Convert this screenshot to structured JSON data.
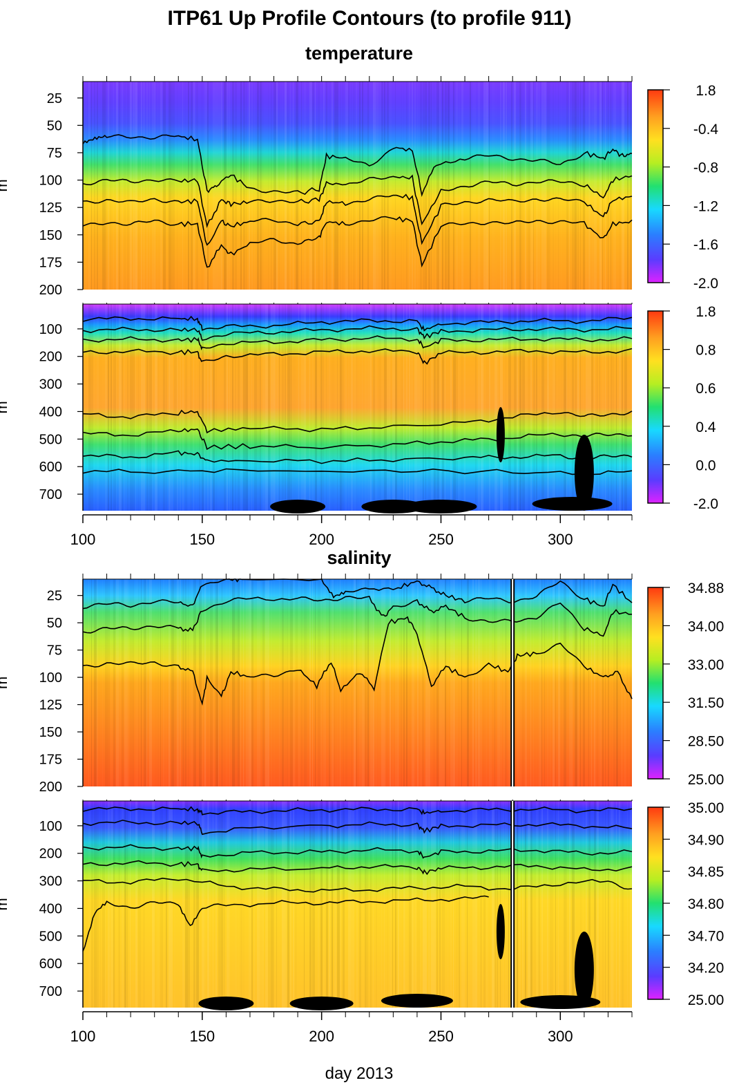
{
  "title": "ITP61 Up Profile Contours (to profile 911)",
  "xlabel": "day 2013",
  "chart_data": [
    {
      "type": "heatmap",
      "section": "temperature",
      "variable": "temperature",
      "ylabel": "m",
      "y_axis_inverted": true,
      "ylim": [
        10,
        200
      ],
      "xlim": [
        100,
        330
      ],
      "x_ticks": [
        100,
        150,
        200,
        250,
        300
      ],
      "y_ticks": [
        25,
        50,
        75,
        100,
        125,
        150,
        175,
        200
      ],
      "colorbar_labels": [
        "1.8",
        "-0.4",
        "-0.8",
        "-1.2",
        "-1.6",
        "-2.0"
      ],
      "contour_depths_m": [
        {
          "day": [
            100,
            105,
            110,
            120,
            130,
            140,
            148,
            152,
            156,
            162,
            170,
            180,
            190,
            199,
            202,
            210,
            220,
            230,
            238,
            242,
            248,
            260,
            270,
            280,
            290,
            300,
            310,
            318,
            322,
            326,
            330
          ],
          "depth": [
            65,
            62,
            61,
            60,
            61,
            60,
            63,
            110,
            105,
            95,
            108,
            110,
            112,
            108,
            78,
            80,
            88,
            70,
            73,
            112,
            85,
            80,
            78,
            80,
            82,
            86,
            75,
            80,
            72,
            78,
            76
          ]
        },
        {
          "day": [
            100,
            110,
            120,
            130,
            140,
            148,
            152,
            158,
            162,
            170,
            180,
            190,
            199,
            202,
            210,
            220,
            230,
            238,
            242,
            250,
            260,
            270,
            280,
            290,
            300,
            310,
            318,
            322,
            330
          ],
          "depth": [
            103,
            100,
            102,
            99,
            101,
            100,
            142,
            118,
            122,
            120,
            118,
            120,
            118,
            103,
            104,
            100,
            97,
            98,
            140,
            110,
            105,
            102,
            104,
            101,
            102,
            104,
            116,
            100,
            96
          ]
        },
        {
          "day": [
            100,
            110,
            120,
            130,
            140,
            148,
            152,
            158,
            162,
            170,
            180,
            190,
            199,
            202,
            210,
            220,
            230,
            238,
            242,
            250,
            260,
            270,
            280,
            290,
            300,
            310,
            318,
            322,
            330
          ],
          "depth": [
            120,
            118,
            121,
            117,
            120,
            119,
            160,
            138,
            142,
            138,
            136,
            140,
            138,
            120,
            121,
            118,
            114,
            116,
            158,
            124,
            120,
            118,
            120,
            117,
            118,
            120,
            134,
            118,
            115
          ]
        },
        {
          "day": [
            100,
            110,
            120,
            130,
            140,
            148,
            152,
            158,
            162,
            170,
            180,
            190,
            199,
            202,
            210,
            220,
            230,
            238,
            242,
            250,
            260,
            270,
            280,
            290,
            300,
            310,
            318,
            322,
            330
          ],
          "depth": [
            142,
            138,
            141,
            137,
            140,
            140,
            180,
            160,
            168,
            158,
            155,
            158,
            152,
            138,
            140,
            136,
            135,
            137,
            178,
            142,
            140,
            138,
            140,
            137,
            138,
            140,
            154,
            140,
            138
          ]
        }
      ]
    },
    {
      "type": "heatmap",
      "section": "temperature",
      "variable": "temperature",
      "ylabel": "m",
      "y_axis_inverted": true,
      "ylim": [
        10,
        760
      ],
      "xlim": [
        100,
        330
      ],
      "x_ticks": [
        100,
        150,
        200,
        250,
        300
      ],
      "y_ticks": [
        100,
        200,
        300,
        400,
        500,
        600,
        700
      ],
      "colorbar_labels": [
        "1.8",
        "0.8",
        "0.6",
        "0.4",
        "0.0",
        "-2.0"
      ],
      "contour_depths_m": [
        {
          "day": [
            100,
            120,
            140,
            148,
            150,
            160,
            180,
            200,
            220,
            240,
            243,
            250,
            270,
            290,
            310,
            330
          ],
          "depth": [
            65,
            62,
            64,
            63,
            100,
            92,
            88,
            75,
            70,
            72,
            105,
            80,
            76,
            70,
            72,
            60
          ]
        },
        {
          "day": [
            100,
            120,
            140,
            148,
            150,
            160,
            180,
            200,
            220,
            240,
            243,
            250,
            270,
            290,
            310,
            330
          ],
          "depth": [
            105,
            102,
            104,
            103,
            135,
            118,
            112,
            104,
            98,
            100,
            130,
            108,
            104,
            100,
            103,
            98
          ]
        },
        {
          "day": [
            100,
            120,
            140,
            148,
            150,
            160,
            180,
            200,
            220,
            240,
            243,
            250,
            270,
            290,
            310,
            330
          ],
          "depth": [
            140,
            138,
            140,
            139,
            170,
            152,
            148,
            140,
            134,
            136,
            168,
            142,
            140,
            136,
            140,
            136
          ]
        },
        {
          "day": [
            100,
            120,
            140,
            148,
            150,
            160,
            180,
            200,
            220,
            240,
            243,
            250,
            270,
            290,
            310,
            330
          ],
          "depth": [
            185,
            182,
            184,
            184,
            225,
            198,
            192,
            184,
            180,
            182,
            225,
            188,
            184,
            180,
            186,
            178
          ]
        },
        {
          "day": [
            100,
            120,
            140,
            148,
            152,
            170,
            200,
            230,
            260,
            280,
            300,
            310,
            320,
            330
          ],
          "depth": [
            410,
            420,
            405,
            400,
            470,
            460,
            465,
            455,
            440,
            420,
            400,
            420,
            410,
            400
          ]
        },
        {
          "day": [
            100,
            120,
            140,
            148,
            152,
            170,
            200,
            230,
            260,
            280,
            300,
            310,
            320,
            330
          ],
          "depth": [
            480,
            485,
            470,
            465,
            530,
            525,
            530,
            520,
            505,
            495,
            480,
            490,
            485,
            480
          ]
        },
        {
          "day": [
            100,
            120,
            140,
            148,
            152,
            170,
            200,
            230,
            260,
            280,
            300,
            310,
            320,
            330
          ],
          "depth": [
            560,
            565,
            550,
            555,
            580,
            578,
            580,
            575,
            568,
            565,
            560,
            570,
            565,
            560
          ]
        },
        {
          "day": [
            100,
            130,
            160,
            200,
            240,
            280,
            310,
            330
          ],
          "depth": [
            615,
            620,
            612,
            618,
            615,
            620,
            625,
            620
          ]
        }
      ]
    },
    {
      "type": "heatmap",
      "section": "salinity",
      "variable": "salinity",
      "ylabel": "m",
      "y_axis_inverted": true,
      "ylim": [
        10,
        200
      ],
      "xlim": [
        100,
        330
      ],
      "x_ticks": [
        100,
        150,
        200,
        250,
        300
      ],
      "y_ticks": [
        25,
        50,
        75,
        100,
        125,
        150,
        175,
        200
      ],
      "colorbar_labels": [
        "34.88",
        "34.00",
        "33.00",
        "31.50",
        "28.50",
        "25.00"
      ],
      "contour_depths_m": [
        {
          "day": [
            100,
            110,
            120,
            130,
            140,
            146,
            150,
            160,
            164,
            168,
            200,
            205,
            210,
            220,
            232,
            240,
            246,
            252,
            260,
            270,
            280,
            290,
            300,
            310,
            318,
            322,
            330
          ],
          "depth": [
            35,
            33,
            34,
            30,
            32,
            34,
            15,
            10,
            10,
            10,
            10,
            25,
            22,
            20,
            18,
            12,
            18,
            25,
            30,
            28,
            30,
            26,
            12,
            28,
            35,
            15,
            32
          ]
        },
        {
          "day": [
            100,
            110,
            120,
            130,
            140,
            146,
            150,
            160,
            170,
            190,
            200,
            210,
            220,
            226,
            230,
            240,
            246,
            252,
            260,
            270,
            280,
            290,
            300,
            310,
            318,
            322,
            330
          ],
          "depth": [
            58,
            55,
            56,
            52,
            55,
            57,
            38,
            30,
            28,
            28,
            30,
            26,
            28,
            45,
            35,
            30,
            40,
            35,
            45,
            50,
            48,
            45,
            32,
            55,
            62,
            40,
            42
          ]
        },
        {
          "day": [
            100,
            110,
            120,
            130,
            140,
            146,
            150,
            152,
            158,
            162,
            170,
            180,
            190,
            198,
            204,
            208,
            216,
            222,
            228,
            236,
            240,
            246,
            252,
            260,
            270,
            278,
            282,
            290,
            300,
            310,
            318,
            324,
            330
          ],
          "depth": [
            90,
            87,
            88,
            86,
            90,
            95,
            125,
            100,
            118,
            95,
            100,
            98,
            92,
            108,
            85,
            112,
            95,
            110,
            50,
            45,
            60,
            108,
            90,
            100,
            88,
            95,
            80,
            78,
            70,
            90,
            100,
            95,
            120
          ]
        }
      ]
    },
    {
      "type": "heatmap",
      "section": "salinity",
      "variable": "salinity",
      "ylabel": "m",
      "y_axis_inverted": true,
      "ylim": [
        10,
        760
      ],
      "xlim": [
        100,
        330
      ],
      "x_ticks": [
        100,
        150,
        200,
        250,
        300
      ],
      "y_ticks": [
        100,
        200,
        300,
        400,
        500,
        600,
        700
      ],
      "colorbar_labels": [
        "35.00",
        "34.90",
        "34.85",
        "34.80",
        "34.70",
        "34.20",
        "25.00"
      ],
      "contour_depths_m": [
        {
          "day": [
            100,
            120,
            140,
            148,
            150,
            170,
            200,
            220,
            240,
            243,
            250,
            270,
            290,
            310,
            330
          ],
          "depth": [
            40,
            38,
            40,
            40,
            55,
            48,
            42,
            40,
            40,
            55,
            45,
            42,
            40,
            45,
            40
          ]
        },
        {
          "day": [
            100,
            120,
            140,
            148,
            150,
            170,
            200,
            220,
            240,
            243,
            250,
            270,
            290,
            310,
            330
          ],
          "depth": [
            90,
            88,
            90,
            90,
            125,
            108,
            100,
            95,
            95,
            120,
            100,
            98,
            95,
            100,
            110
          ]
        },
        {
          "day": [
            100,
            120,
            140,
            148,
            150,
            170,
            200,
            220,
            240,
            243,
            250,
            270,
            290,
            310,
            330
          ],
          "depth": [
            180,
            178,
            182,
            182,
            210,
            198,
            195,
            188,
            190,
            215,
            195,
            192,
            188,
            200,
            195
          ]
        },
        {
          "day": [
            100,
            120,
            140,
            148,
            150,
            170,
            200,
            220,
            240,
            243,
            250,
            270,
            290,
            310,
            330
          ],
          "depth": [
            240,
            235,
            238,
            240,
            265,
            258,
            255,
            248,
            250,
            270,
            255,
            250,
            245,
            260,
            255
          ]
        },
        {
          "day": [
            100,
            120,
            140,
            160,
            180,
            200,
            220,
            240,
            260,
            280,
            300,
            320,
            330
          ],
          "depth": [
            300,
            305,
            290,
            320,
            330,
            335,
            332,
            325,
            320,
            330,
            310,
            300,
            330
          ]
        },
        {
          "day": [
            100,
            105,
            110,
            120,
            130,
            140,
            145,
            150,
            160,
            180,
            200,
            220,
            240,
            260,
            270
          ],
          "depth": [
            560,
            420,
            380,
            395,
            380,
            385,
            460,
            395,
            390,
            380,
            380,
            375,
            370,
            365,
            360
          ]
        }
      ]
    }
  ]
}
